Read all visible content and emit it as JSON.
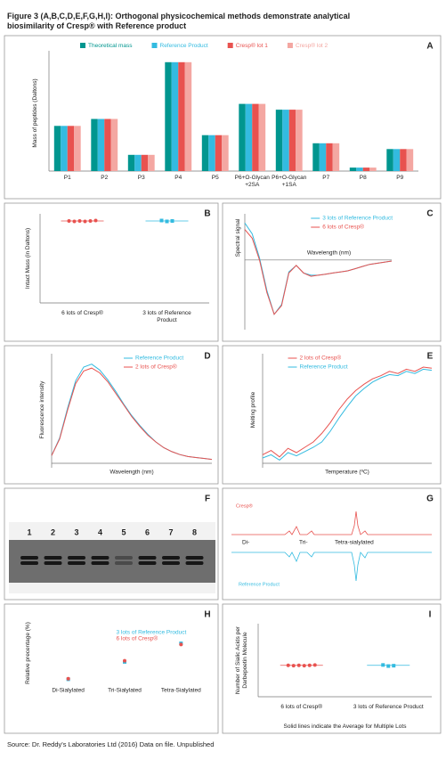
{
  "title": "Figure 3 (A,B,C,D,E,F,G,H,I): Orthogonal physicochemical methods demonstrate analytical biosimilarity of Cresp® with Reference product",
  "source": "Source: Dr. Reddy's Laboratories Ltd (2016) Data on file. Unpublished",
  "chart_data": [
    {
      "type": "bar",
      "panel": "A",
      "y_label": "Mass of peptides (Daltons)",
      "categories": [
        "P1",
        "P2",
        "P3",
        "P4",
        "P5",
        "P6+O-Glycan +2SA",
        "P6+O-Glycan +1SA",
        "P7",
        "P8",
        "P9"
      ],
      "ylim": [
        0,
        100
      ],
      "series": [
        {
          "name": "Theoretical mass",
          "color": "#00968f",
          "values": [
            39,
            45,
            14,
            94,
            31,
            58,
            53,
            24,
            3,
            19
          ]
        },
        {
          "name": "Reference Product",
          "color": "#33bbe0",
          "values": [
            39,
            45,
            14,
            94,
            31,
            58,
            53,
            24,
            3,
            19
          ]
        },
        {
          "name": "Cresp® lot 1",
          "color": "#e8524f",
          "values": [
            39,
            45,
            14,
            94,
            31,
            58,
            53,
            24,
            3,
            19
          ]
        },
        {
          "name": "Cresp® lot 2",
          "color": "#f4a7a2",
          "values": [
            39,
            45,
            14,
            94,
            31,
            58,
            53,
            24,
            3,
            19
          ]
        }
      ]
    },
    {
      "type": "dot",
      "panel": "B",
      "y_label": "Intact Mass (in Daltons)",
      "ylim": [
        0,
        100
      ],
      "groups": [
        {
          "label": "6 lots of Cresp®",
          "color": "#e8524f",
          "marker": "circle",
          "values": [
            92,
            91.5,
            92,
            91.5,
            92,
            92.5
          ],
          "average": 92
        },
        {
          "label": "3 lots of Reference Product",
          "color": "#33bbe0",
          "marker": "square",
          "values": [
            92.5,
            91.5,
            92
          ],
          "average": 92
        }
      ]
    },
    {
      "type": "line",
      "panel": "C",
      "y_label": "Spectral signal",
      "x_label": "Wavelength (nm)",
      "legend": "upper right",
      "x": [
        0,
        1,
        2,
        3,
        4,
        5,
        6,
        7,
        8,
        9,
        10,
        11,
        12,
        13,
        14,
        15,
        16,
        17,
        18,
        19,
        20
      ],
      "xlim": [
        0,
        20
      ],
      "ylim": [
        -60,
        40
      ],
      "series": [
        {
          "name": "3 lots of Reference Product",
          "color": "#33bbe0",
          "values": [
            34,
            24,
            2,
            -28,
            -50,
            -41,
            -11,
            -5,
            -12,
            -14,
            -14,
            -13,
            -12,
            -11,
            -10,
            -8,
            -6,
            -4,
            -3,
            -2,
            -1
          ]
        },
        {
          "name": "6 lots of Cresp®",
          "color": "#e8524f",
          "values": [
            28,
            20,
            0,
            -30,
            -50,
            -42,
            -12,
            -5,
            -12,
            -15,
            -14,
            -13,
            -12,
            -11,
            -10,
            -8,
            -6,
            -4,
            -3,
            -2,
            -1
          ]
        }
      ]
    },
    {
      "type": "line",
      "panel": "D",
      "y_label": "Fluorescence intensity",
      "x_label": "Wavelength (nm)",
      "legend": "upper right",
      "x": [
        0,
        1,
        2,
        3,
        4,
        5,
        6,
        7,
        8,
        9,
        10,
        11,
        12,
        13,
        14,
        15,
        16,
        17,
        18,
        19,
        20
      ],
      "xlim": [
        0,
        20
      ],
      "ylim": [
        0,
        110
      ],
      "series": [
        {
          "name": "Reference Product",
          "color": "#33bbe0",
          "values": [
            8,
            26,
            57,
            85,
            99,
            102,
            96,
            86,
            74,
            61,
            49,
            39,
            30,
            22,
            16,
            12,
            9,
            7,
            6,
            5,
            4
          ]
        },
        {
          "name": "2 lots of Cresp®",
          "color": "#e8524f",
          "values": [
            8,
            25,
            55,
            82,
            95,
            98,
            93,
            84,
            72,
            60,
            48,
            38,
            29,
            22,
            16,
            12,
            9,
            7,
            6,
            5,
            4
          ]
        }
      ]
    },
    {
      "type": "line",
      "panel": "E",
      "y_label": "Melting profile",
      "x_label": "Temperature (ºC)",
      "legend": "upper center",
      "x": [
        0,
        1,
        2,
        3,
        4,
        5,
        6,
        7,
        8,
        9,
        10,
        11,
        12,
        13,
        14,
        15,
        16,
        17,
        18,
        19,
        20
      ],
      "xlim": [
        0,
        20
      ],
      "ylim": [
        0,
        100
      ],
      "series": [
        {
          "name": "2 lots of Cresp®",
          "color": "#e8524f",
          "values": [
            8,
            12,
            6,
            14,
            10,
            15,
            20,
            28,
            38,
            50,
            60,
            68,
            74,
            79,
            82,
            86,
            84,
            88,
            86,
            90,
            89
          ]
        },
        {
          "name": "Reference Product",
          "color": "#33bbe0",
          "values": [
            5,
            8,
            3,
            10,
            7,
            11,
            15,
            20,
            30,
            42,
            53,
            63,
            70,
            76,
            80,
            83,
            82,
            86,
            84,
            88,
            87
          ]
        }
      ]
    },
    {
      "type": "strip",
      "panel": "H",
      "y_label": "Relative precentage (%)",
      "legend": "upper right",
      "categories": [
        "Di-Sialylated",
        "Tri-Sialylated",
        "Tetra-Sialylated"
      ],
      "ylim": [
        0,
        100
      ],
      "series": [
        {
          "name": "3 lots of Reference Product",
          "color": "#33bbe0",
          "marker": "square",
          "values": [
            4,
            34,
            66
          ]
        },
        {
          "name": "6 lots of Cresp®",
          "color": "#e8524f",
          "marker": "circle",
          "values": [
            5,
            36,
            64
          ]
        }
      ]
    },
    {
      "type": "dot",
      "panel": "I",
      "y_label": "Number of Sialic Acids per Darbepoetin Molecule",
      "ylim": [
        0,
        100
      ],
      "note": "Solid lines indicate the Average for Multiple Lots",
      "groups": [
        {
          "label": "6 lots of Cresp®",
          "color": "#e8524f",
          "marker": "circle",
          "values": [
            43,
            42.5,
            43,
            42.5,
            43,
            43.5
          ],
          "average": 43
        },
        {
          "label": "3 lots of Reference Product",
          "color": "#33bbe0",
          "marker": "square",
          "values": [
            43.5,
            42,
            42.5
          ],
          "average": 43
        }
      ]
    }
  ],
  "gel": {
    "panel": "F",
    "lanes": [
      "1",
      "2",
      "3",
      "4",
      "5",
      "6",
      "7",
      "8"
    ]
  },
  "chromatogram": {
    "panel": "G",
    "labels": [
      "Cresp®",
      "Di-",
      "Tri-",
      "Tetra-sialylated",
      "Reference Product"
    ]
  }
}
